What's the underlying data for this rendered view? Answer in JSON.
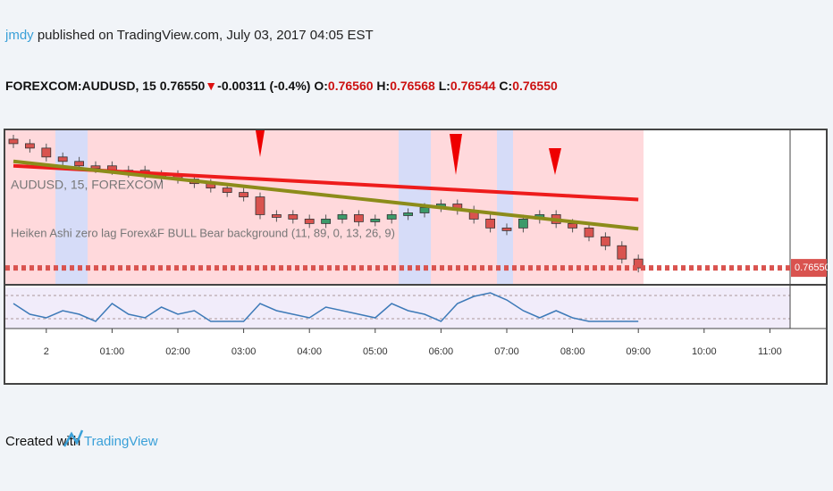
{
  "header": {
    "author": "jmdy",
    "published": "published on TradingView.com, July 03, 2017 04:05 EST",
    "symbol": "FOREXCOM:AUDUSD, 15",
    "last": "0.76550",
    "arrow": "▼",
    "change": "-0.00311 (-0.4%)",
    "o_label": "O:",
    "o": "0.76560",
    "h_label": "H:",
    "h": "0.76568",
    "l_label": "L:",
    "l": "0.76544",
    "c_label": "C:",
    "c": "0.76550"
  },
  "footer": {
    "created": "Created with",
    "brand": "TradingView"
  },
  "chart_data": {
    "type": "candlestick",
    "legend_symbol": "AUDUSD, 15, FOREXCOM",
    "legend_indicator": "Heiken Ashi zero lag Forex&F BULL Bear background (11, 89, 0, 13, 26, 9)",
    "categories": [
      null,
      null,
      "2",
      null,
      null,
      null,
      "01:00",
      null,
      null,
      null,
      "02:00",
      null,
      null,
      null,
      "03:00",
      null,
      null,
      null,
      "04:00",
      null,
      null,
      null,
      "05:00",
      null,
      null,
      null,
      "06:00",
      null,
      null,
      null,
      "07:00",
      null,
      null,
      null,
      "08:00",
      null,
      null,
      null,
      "09:00",
      null,
      null,
      null,
      "10:00",
      null,
      null,
      null,
      "11:00"
    ],
    "open": [
      0.7684,
      0.7683,
      0.7682,
      0.768,
      0.7679,
      0.7678,
      0.7678,
      0.7677,
      0.7677,
      0.7676,
      0.7676,
      0.7675,
      0.7674,
      0.7673,
      0.7672,
      0.7671,
      0.7667,
      0.7667,
      0.7666,
      0.7665,
      0.7666,
      0.7667,
      0.76654,
      0.7666,
      0.7667,
      0.76674,
      0.76686,
      0.76694,
      0.7668,
      0.7666,
      0.7664,
      0.7664,
      0.7666,
      0.7667,
      0.7665,
      0.7664,
      0.7662,
      0.766,
      0.7657,
      null,
      null,
      null,
      null,
      null,
      null,
      null,
      null
    ],
    "close": [
      0.7683,
      0.7682,
      0.768,
      0.7679,
      0.7678,
      0.7678,
      0.7677,
      0.7677,
      0.7676,
      0.7676,
      0.7675,
      0.7674,
      0.7673,
      0.7672,
      0.7671,
      0.7667,
      0.7667,
      0.7666,
      0.7665,
      0.7666,
      0.7667,
      0.76654,
      0.7666,
      0.7667,
      0.76674,
      0.76686,
      0.76694,
      0.7668,
      0.7666,
      0.7664,
      0.7664,
      0.7666,
      0.7667,
      0.7665,
      0.7664,
      0.7662,
      0.766,
      0.7657,
      0.7655,
      null,
      null,
      null,
      null,
      null,
      null,
      null,
      null
    ],
    "series": [
      {
        "color": "#ee1c1c",
        "values": [
          0.7678,
          0.76778,
          0.76776,
          0.76774,
          0.76772,
          0.7677,
          0.76768,
          0.76766,
          0.76764,
          0.76762,
          0.7676,
          0.76758,
          0.76756,
          0.76754,
          0.76752,
          0.7675,
          0.76748,
          0.76746,
          0.76744,
          0.76742,
          0.7674,
          0.76738,
          0.76736,
          0.76734,
          0.76732,
          0.7673,
          0.76728,
          0.76726,
          0.76724,
          0.76722,
          0.7672,
          0.76718,
          0.76716,
          0.76714,
          0.76712,
          0.7671,
          0.76708,
          0.76706,
          0.76704,
          null,
          null,
          null,
          null,
          null,
          null,
          null,
          null
        ]
      },
      {
        "color": "#8c8c1a",
        "values": [
          0.7679,
          0.76786,
          0.76782,
          0.76778,
          0.76774,
          0.7677,
          0.76766,
          0.76762,
          0.76758,
          0.76754,
          0.7675,
          0.76746,
          0.76742,
          0.76738,
          0.76734,
          0.7673,
          0.76726,
          0.76722,
          0.76718,
          0.76714,
          0.7671,
          0.76706,
          0.76702,
          0.76698,
          0.76694,
          0.7669,
          0.76686,
          0.76682,
          0.76678,
          0.76674,
          0.7667,
          0.76666,
          0.76662,
          0.76658,
          0.76654,
          0.7665,
          0.76646,
          0.76642,
          0.76638,
          null,
          null,
          null,
          null,
          null,
          null,
          null,
          null
        ]
      }
    ],
    "oscillator": {
      "color": "#3d7ab8",
      "values": [
        60,
        30,
        20,
        40,
        30,
        10,
        60,
        30,
        20,
        50,
        30,
        40,
        10,
        10,
        10,
        60,
        40,
        30,
        20,
        50,
        40,
        30,
        20,
        60,
        40,
        30,
        10,
        60,
        80,
        90,
        70,
        40,
        20,
        40,
        20,
        10,
        10,
        10,
        10,
        null,
        null,
        null,
        null,
        null,
        null,
        null,
        null
      ],
      "ylim": [
        0,
        100
      ]
    },
    "ylim": [
      0.76514,
      0.7686
    ],
    "last_price": {
      "value": 0.7655,
      "label": "0.76550"
    },
    "up_color": "#3c9a6a",
    "down_color": "#d9534f"
  }
}
